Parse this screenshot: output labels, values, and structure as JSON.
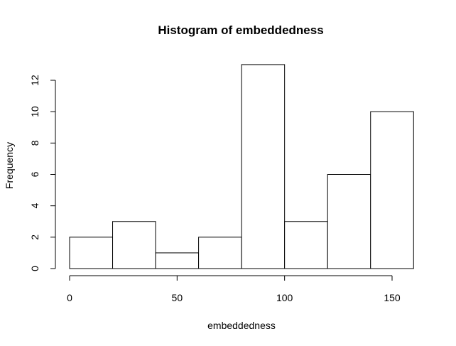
{
  "chart_data": {
    "type": "bar",
    "title": "Histogram of embeddedness",
    "xlabel": "embeddedness",
    "ylabel": "Frequency",
    "bins": [
      {
        "start": 0,
        "end": 20,
        "count": 2
      },
      {
        "start": 20,
        "end": 40,
        "count": 3
      },
      {
        "start": 40,
        "end": 60,
        "count": 1
      },
      {
        "start": 60,
        "end": 80,
        "count": 2
      },
      {
        "start": 80,
        "end": 100,
        "count": 13
      },
      {
        "start": 100,
        "end": 120,
        "count": 3
      },
      {
        "start": 120,
        "end": 140,
        "count": 6
      },
      {
        "start": 140,
        "end": 160,
        "count": 10
      }
    ],
    "x_ticks": [
      0,
      50,
      100,
      150
    ],
    "x_tick_labels": [
      "0",
      "50",
      "100",
      "150"
    ],
    "y_ticks": [
      0,
      2,
      4,
      6,
      8,
      10,
      12
    ],
    "y_tick_labels": [
      "0",
      "2",
      "4",
      "6",
      "8",
      "10",
      "12"
    ],
    "xlim": [
      0,
      160
    ],
    "ylim": [
      0,
      13
    ],
    "grid": false,
    "legend": "none",
    "bar_fill": "#ffffff",
    "bar_stroke": "#000000"
  }
}
